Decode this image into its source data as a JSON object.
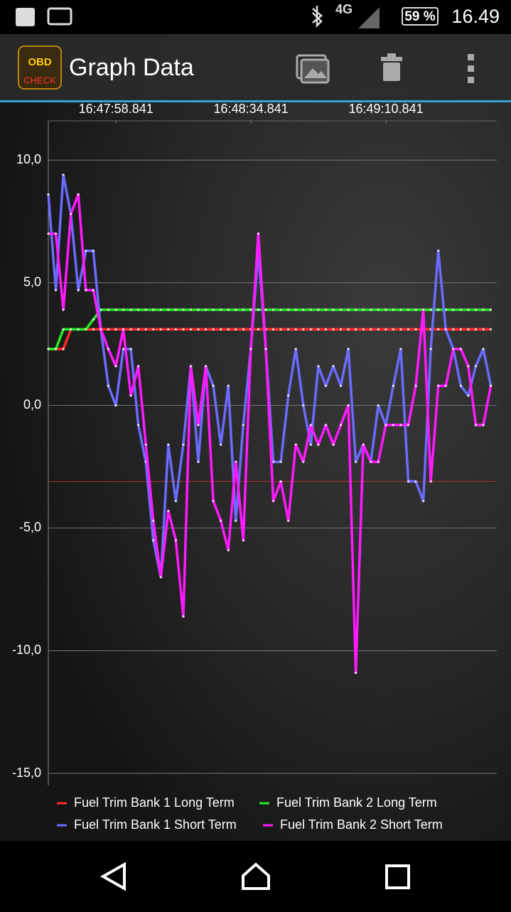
{
  "status_bar": {
    "network": "4G",
    "battery": "59 %",
    "time": "16.49"
  },
  "app_bar": {
    "icon_top": "OBD",
    "icon_bottom": "CHECK",
    "title": "Graph Data"
  },
  "chart_data": {
    "type": "line",
    "x": [
      60460.8,
      60462.8,
      60464.8,
      60466.8,
      60468.8,
      60470.8,
      60472.8,
      60474.8,
      60476.8,
      60478.8,
      60480.8,
      60482.8,
      60484.8,
      60486.8,
      60488.8,
      60490.8,
      60492.8,
      60494.8,
      60496.8,
      60498.8,
      60500.8,
      60502.8,
      60504.8,
      60506.8,
      60508.8,
      60510.8,
      60512.8,
      60514.8,
      60516.8,
      60518.8,
      60520.8,
      60522.8,
      60524.8,
      60526.8,
      60528.8,
      60530.8,
      60532.8,
      60534.8,
      60536.8,
      60538.8,
      60540.8,
      60542.8,
      60544.8,
      60546.8,
      60548.8,
      60550.8,
      60552.8,
      60554.8,
      60556.8,
      60558.8,
      60560.8,
      60562.8,
      60564.8,
      60566.8,
      60568.8,
      60570.8,
      60572.8,
      60574.8,
      60576.8,
      60578.8
    ],
    "series": [
      {
        "name": "Fuel Trim Bank 1 Long Term",
        "color": "#ff2a2a",
        "values": [
          2.3,
          2.3,
          2.3,
          3.1,
          3.1,
          3.1,
          3.1,
          3.1,
          3.1,
          3.1,
          3.1,
          3.1,
          3.1,
          3.1,
          3.1,
          3.1,
          3.1,
          3.1,
          3.1,
          3.1,
          3.1,
          3.1,
          3.1,
          3.1,
          3.1,
          3.1,
          3.1,
          3.1,
          3.1,
          3.1,
          3.1,
          3.1,
          3.1,
          3.1,
          3.1,
          3.1,
          3.1,
          3.1,
          3.1,
          3.1,
          3.1,
          3.1,
          3.1,
          3.1,
          3.1,
          3.1,
          3.1,
          3.1,
          3.1,
          3.1,
          3.1,
          3.1,
          3.1,
          3.1,
          3.1,
          3.1,
          3.1,
          3.1,
          3.1,
          3.1
        ]
      },
      {
        "name": "Fuel Trim Bank 2 Long Term",
        "color": "#22ee22",
        "values": [
          2.3,
          2.3,
          3.1,
          3.1,
          3.1,
          3.1,
          3.5,
          3.9,
          3.9,
          3.9,
          3.9,
          3.9,
          3.9,
          3.9,
          3.9,
          3.9,
          3.9,
          3.9,
          3.9,
          3.9,
          3.9,
          3.9,
          3.9,
          3.9,
          3.9,
          3.9,
          3.9,
          3.9,
          3.9,
          3.9,
          3.9,
          3.9,
          3.9,
          3.9,
          3.9,
          3.9,
          3.9,
          3.9,
          3.9,
          3.9,
          3.9,
          3.9,
          3.9,
          3.9,
          3.9,
          3.9,
          3.9,
          3.9,
          3.9,
          3.9,
          3.9,
          3.9,
          3.9,
          3.9,
          3.9,
          3.9,
          3.9,
          3.9,
          3.9,
          3.9
        ]
      },
      {
        "name": "Fuel Trim Bank 1 Short Term",
        "color": "#6b6bff",
        "values": [
          8.6,
          4.7,
          9.4,
          7.8,
          4.7,
          6.3,
          6.3,
          3.1,
          0.8,
          0,
          2.3,
          2.3,
          -0.8,
          -2.3,
          -5.5,
          -7.0,
          -1.6,
          -3.9,
          -1.6,
          1.6,
          -2.3,
          1.6,
          0.8,
          -1.6,
          0.8,
          -4.7,
          -0.8,
          2.3,
          6.3,
          2.3,
          -2.3,
          -2.3,
          0.4,
          2.3,
          0,
          -1.6,
          1.6,
          0.8,
          1.6,
          0.8,
          2.3,
          -2.3,
          -1.6,
          -2.3,
          0,
          -0.8,
          0.8,
          2.3,
          -3.1,
          -3.1,
          -3.9,
          2.3,
          6.3,
          3.1,
          2.3,
          0.8,
          0.4,
          1.6,
          2.3,
          0.8
        ]
      },
      {
        "name": "Fuel Trim Bank 2 Short Term",
        "color": "#ff1aff",
        "values": [
          7.0,
          7.0,
          3.9,
          7.8,
          8.6,
          4.7,
          4.7,
          3.1,
          2.3,
          1.6,
          3.1,
          0.4,
          1.6,
          -1.6,
          -4.7,
          -7.0,
          -4.3,
          -5.5,
          -8.6,
          1.6,
          -0.8,
          1.6,
          -3.9,
          -4.7,
          -5.9,
          -2.3,
          -5.5,
          2.3,
          7.0,
          2.3,
          -3.9,
          -3.1,
          -4.7,
          -1.6,
          -2.3,
          -0.8,
          -1.6,
          -0.8,
          -1.6,
          -0.8,
          0,
          -10.9,
          -1.6,
          -2.3,
          -2.3,
          -0.8,
          -0.8,
          -0.8,
          -0.8,
          0.8,
          3.9,
          -3.1,
          0.8,
          0.8,
          2.3,
          2.3,
          1.6,
          -0.8,
          -0.8,
          0.8
        ]
      }
    ],
    "xlim": [
      60460.8,
      60580.4
    ],
    "xticks": [
      {
        "value": 60478.841,
        "label": "16:47:58.841"
      },
      {
        "value": 60514.841,
        "label": "16:48:34.841"
      },
      {
        "value": 60550.841,
        "label": "16:49:10.841"
      }
    ],
    "ylim": [
      -15,
      11.6
    ],
    "yticks": [
      {
        "value": 10,
        "label": "10,0"
      },
      {
        "value": 5,
        "label": "5,0"
      },
      {
        "value": 0,
        "label": "0,0"
      },
      {
        "value": -5,
        "label": "-5,0"
      },
      {
        "value": -10,
        "label": "-10,0"
      },
      {
        "value": -15,
        "label": "-15,0"
      }
    ],
    "reference_line": -3.1,
    "grid": true
  }
}
